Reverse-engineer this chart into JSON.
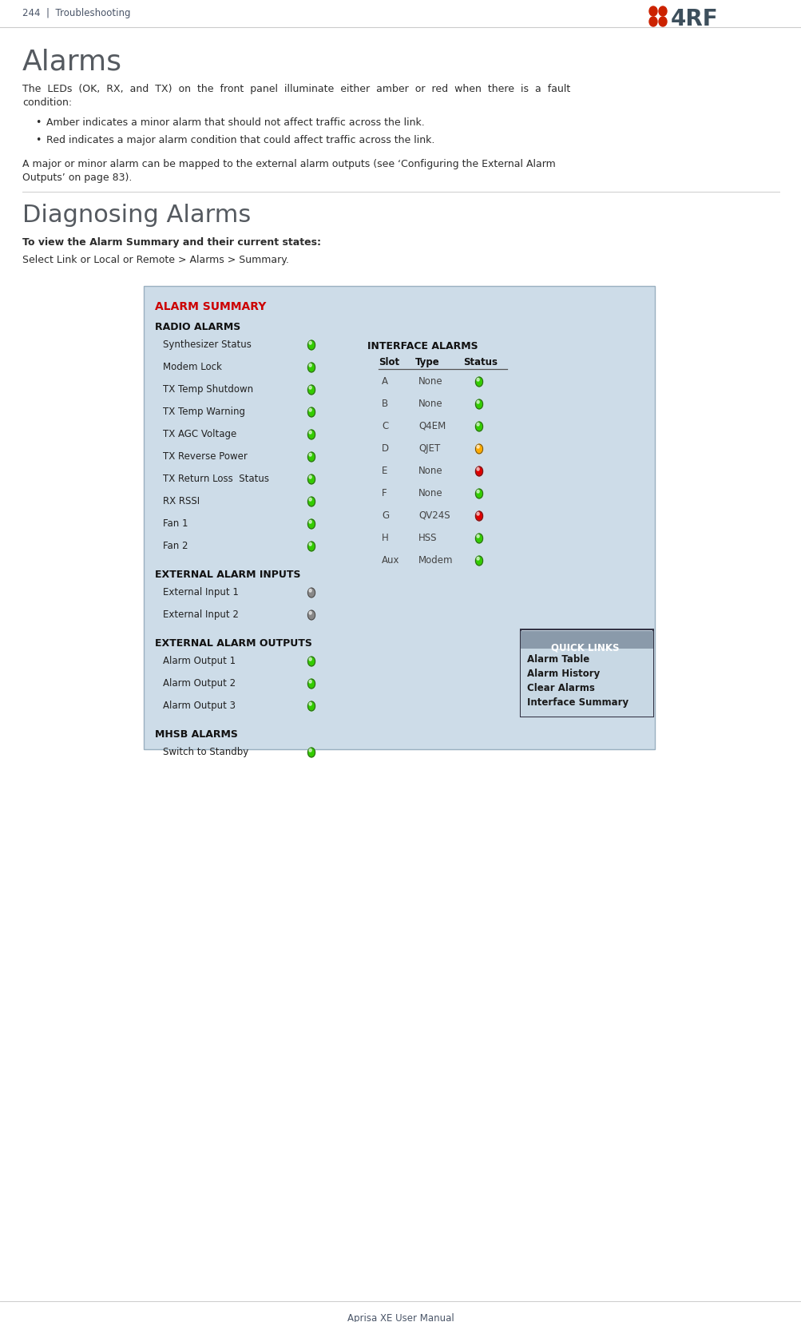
{
  "page_header": "244  |  Troubleshooting",
  "footer": "Aprisa XE User Manual",
  "title": "Alarms",
  "section2_title": "Diagnosing Alarms",
  "body_text1_line1": "The  LEDs  (OK,  RX,  and  TX)  on  the  front  panel  illuminate  either  amber  or  red  when  there  is  a  fault",
  "body_text1_line2": "condition:",
  "bullet1": "Amber indicates a minor alarm that should not affect traffic across the link.",
  "bullet2": "Red indicates a major alarm condition that could affect traffic across the link.",
  "body_text2_line1": "A major or minor alarm can be mapped to the external alarm outputs (see ‘Configuring the External Alarm",
  "body_text2_line2": "Outputs’ on page 83).",
  "bold_text": "To view the Alarm Summary and their current states:",
  "select_text": "Select Link or Local or Remote > Alarms > Summary.",
  "bg_color": "#ffffff",
  "header_color": "#4a5568",
  "title_color": "#4a5568",
  "text_color": "#2d2d2d",
  "alarm_summary_bg": "#cddce8",
  "alarm_title_color": "#cc0000",
  "radio_alarms_label": "RADIO ALARMS",
  "radio_items": [
    "Synthesizer Status",
    "Modem Lock",
    "TX Temp Shutdown",
    "TX Temp Warning",
    "TX AGC Voltage",
    "TX Reverse Power",
    "TX Return Loss  Status",
    "RX RSSI",
    "Fan 1",
    "Fan 2"
  ],
  "radio_leds": [
    "green",
    "green",
    "green",
    "green",
    "green",
    "green",
    "green",
    "green",
    "green",
    "green"
  ],
  "interface_alarms_label": "INTERFACE ALARMS",
  "interface_slots": [
    "A",
    "B",
    "C",
    "D",
    "E",
    "F",
    "G",
    "H",
    "Aux"
  ],
  "interface_types": [
    "None",
    "None",
    "Q4EM",
    "QJET",
    "None",
    "None",
    "QV24S",
    "HSS",
    "Modem"
  ],
  "interface_leds": [
    "green",
    "green",
    "green",
    "amber",
    "red",
    "green",
    "red",
    "green",
    "green"
  ],
  "ext_input_label": "EXTERNAL ALARM INPUTS",
  "ext_inputs": [
    "External Input 1",
    "External Input 2"
  ],
  "ext_input_leds": [
    "gray",
    "gray"
  ],
  "ext_output_label": "EXTERNAL ALARM OUTPUTS",
  "ext_outputs": [
    "Alarm Output 1",
    "Alarm Output 2",
    "Alarm Output 3"
  ],
  "ext_output_leds": [
    "green",
    "green",
    "green"
  ],
  "mhsb_label": "MHSB ALARMS",
  "mhsb_items": [
    "Switch to Standby"
  ],
  "mhsb_leds": [
    "green"
  ],
  "quick_links_label": "QUICK LINKS",
  "quick_links": [
    "Alarm Table",
    "Alarm History",
    "Clear Alarms",
    "Interface Summary"
  ],
  "quick_links_header_bg": "#8a9aaa",
  "quick_links_body_bg": "#c8d8e4",
  "quick_links_text_header": "#ffffff",
  "quick_links_text_body": "#1a1a1a",
  "quick_links_border": "#333344"
}
